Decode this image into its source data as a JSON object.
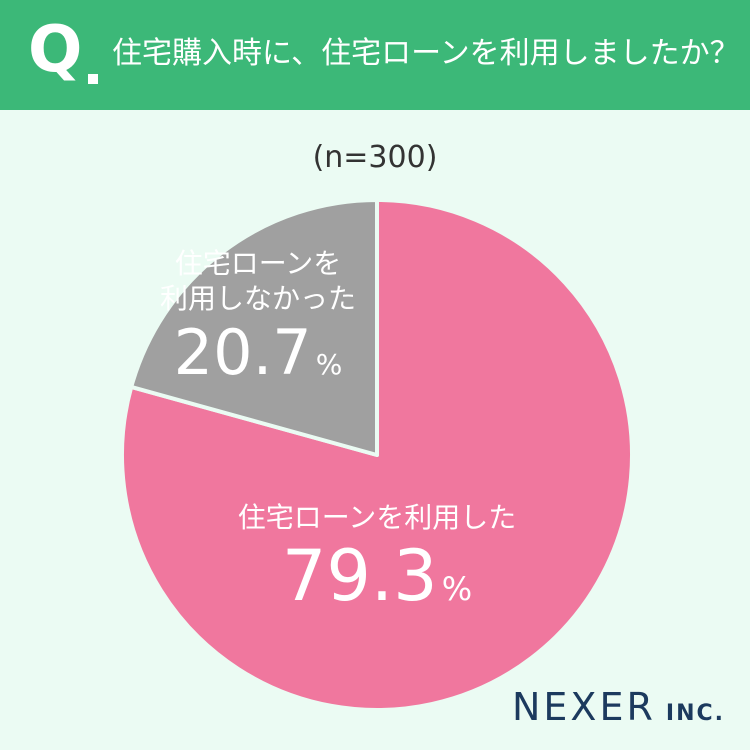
{
  "header": {
    "q_label": "Q",
    "question": "住宅購入時に、住宅ローンを利用しましたか？",
    "background_color": "#3cb878"
  },
  "sample_size": "(n=300)",
  "chart_data": {
    "type": "pie",
    "slices": [
      {
        "label_lines": [
          "住宅ローンを利用した"
        ],
        "value": 79.3,
        "display": "79.3",
        "unit": "%",
        "color": "#f0779e"
      },
      {
        "label_lines": [
          "住宅ローンを",
          "利用しなかった"
        ],
        "value": 20.7,
        "display": "20.7",
        "unit": "%",
        "color": "#a0a0a0"
      }
    ]
  },
  "logo": {
    "name": "NEXER",
    "suffix": "INC."
  }
}
